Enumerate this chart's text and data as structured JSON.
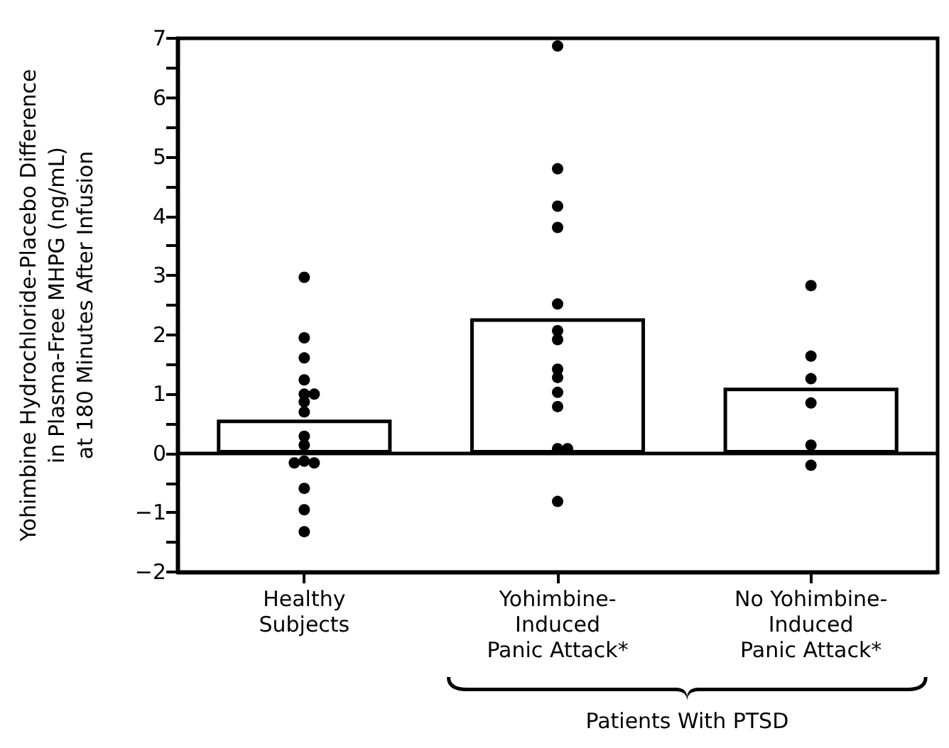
{
  "chart_data": {
    "type": "bar",
    "ylabel": "Yohimbine Hydrochloride-Placebo Difference\nin Plasma-Free MHPG (ng/mL)\nat 180 Minutes After Infusion",
    "categories": [
      "Healthy\nSubjects",
      "Yohimbine-\nInduced\nPanic Attack*",
      "No Yohimbine-\nInduced\nPanic Attack*"
    ],
    "series": [
      {
        "color": "#ffffff",
        "values": [
          0.57,
          2.28,
          1.11
        ]
      },
      {
        "type": "scatter",
        "color": "#000000",
        "x": [
          "Healthy\nSubjects",
          "Healthy\nSubjects",
          "Healthy\nSubjects",
          "Healthy\nSubjects",
          "Healthy\nSubjects",
          "Healthy\nSubjects",
          "Healthy\nSubjects",
          "Healthy\nSubjects",
          "Healthy\nSubjects",
          "Healthy\nSubjects",
          "Healthy\nSubjects",
          "Healthy\nSubjects",
          "Healthy\nSubjects",
          "Healthy\nSubjects",
          "Healthy\nSubjects",
          "Healthy\nSubjects",
          "Yohimbine-\nInduced\nPanic Attack*",
          "Yohimbine-\nInduced\nPanic Attack*",
          "Yohimbine-\nInduced\nPanic Attack*",
          "Yohimbine-\nInduced\nPanic Attack*",
          "Yohimbine-\nInduced\nPanic Attack*",
          "Yohimbine-\nInduced\nPanic Attack*",
          "Yohimbine-\nInduced\nPanic Attack*",
          "Yohimbine-\nInduced\nPanic Attack*",
          "Yohimbine-\nInduced\nPanic Attack*",
          "Yohimbine-\nInduced\nPanic Attack*",
          "Yohimbine-\nInduced\nPanic Attack*",
          "Yohimbine-\nInduced\nPanic Attack*",
          "Yohimbine-\nInduced\nPanic Attack*",
          "Yohimbine-\nInduced\nPanic Attack*",
          "No Yohimbine-\nInduced\nPanic Attack*",
          "No Yohimbine-\nInduced\nPanic Attack*",
          "No Yohimbine-\nInduced\nPanic Attack*",
          "No Yohimbine-\nInduced\nPanic Attack*",
          "No Yohimbine-\nInduced\nPanic Attack*",
          "No Yohimbine-\nInduced\nPanic Attack*"
        ],
        "values": [
          2.97,
          1.95,
          1.61,
          1.24,
          1.0,
          1.0,
          0.87,
          0.7,
          0.29,
          0.14,
          -0.13,
          -0.16,
          -0.16,
          -0.59,
          -0.95,
          -1.32,
          6.87,
          4.8,
          4.17,
          3.81,
          2.52,
          2.07,
          1.92,
          1.42,
          1.28,
          1.03,
          0.79,
          0.08,
          0.08,
          -0.81,
          2.83,
          1.64,
          1.26,
          0.85,
          0.14,
          -0.2
        ]
      }
    ],
    "ylim": [
      -2,
      7
    ],
    "yticks": [
      -2,
      {
        "value": -1.5,
        "label": null
      },
      -1,
      {
        "value": -0.5,
        "label": null
      },
      0,
      {
        "value": 0.5,
        "label": null
      },
      1,
      {
        "value": 1.5,
        "label": null
      },
      2,
      {
        "value": 2.5,
        "label": null
      },
      3,
      {
        "value": 3.5,
        "label": null
      },
      4,
      {
        "value": 4.5,
        "label": null
      },
      5,
      {
        "value": 5.5,
        "label": null
      },
      6,
      {
        "value": 6.5,
        "label": null
      },
      7
    ],
    "ref_lines": [
      {
        "axis": "y",
        "value": 0,
        "color": "#000000"
      }
    ],
    "annotations": [
      "Patients With PTSD"
    ],
    "marker": "circle",
    "grid": false
  }
}
